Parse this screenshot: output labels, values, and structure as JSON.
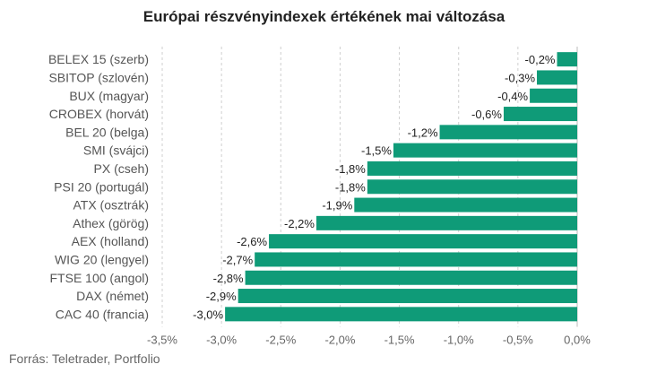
{
  "chart_data": {
    "type": "bar",
    "orientation": "horizontal",
    "title": "Európai részvényindexek értékének mai változása",
    "categories": [
      "BELEX 15 (szerb)",
      "SBITOP (szlovén)",
      "BUX (magyar)",
      "CROBEX (horvát)",
      "BEL 20 (belga)",
      "SMI (svájci)",
      "PX (cseh)",
      "PSI 20 (portugál)",
      "ATX (osztrák)",
      "Athex (görög)",
      "AEX (holland)",
      "WIG 20 (lengyel)",
      "FTSE 100 (angol)",
      "DAX (német)",
      "CAC 40 (francia)"
    ],
    "values": [
      -0.17,
      -0.34,
      -0.4,
      -0.62,
      -1.16,
      -1.55,
      -1.77,
      -1.77,
      -1.88,
      -2.2,
      -2.6,
      -2.72,
      -2.8,
      -2.86,
      -2.97
    ],
    "value_labels": [
      "-0,2%",
      "-0,3%",
      "-0,4%",
      "-0,6%",
      "-1,2%",
      "-1,5%",
      "-1,8%",
      "-1,8%",
      "-1,9%",
      "-2,2%",
      "-2,6%",
      "-2,7%",
      "-2,8%",
      "-2,9%",
      "-3,0%"
    ],
    "xlim": [
      -3.5,
      0
    ],
    "x_ticks": [
      -3.5,
      -3.0,
      -2.5,
      -2.0,
      -1.5,
      -1.0,
      -0.5,
      0
    ],
    "x_tick_labels": [
      "-3,5%",
      "-3,0%",
      "-2,5%",
      "-2,0%",
      "-1,5%",
      "-1,0%",
      "-0,5%",
      "0,0%"
    ],
    "grid": "vertical dashed",
    "bar_color": "#0f9b78",
    "source": "Forrás: Teletrader, Portfolio"
  }
}
